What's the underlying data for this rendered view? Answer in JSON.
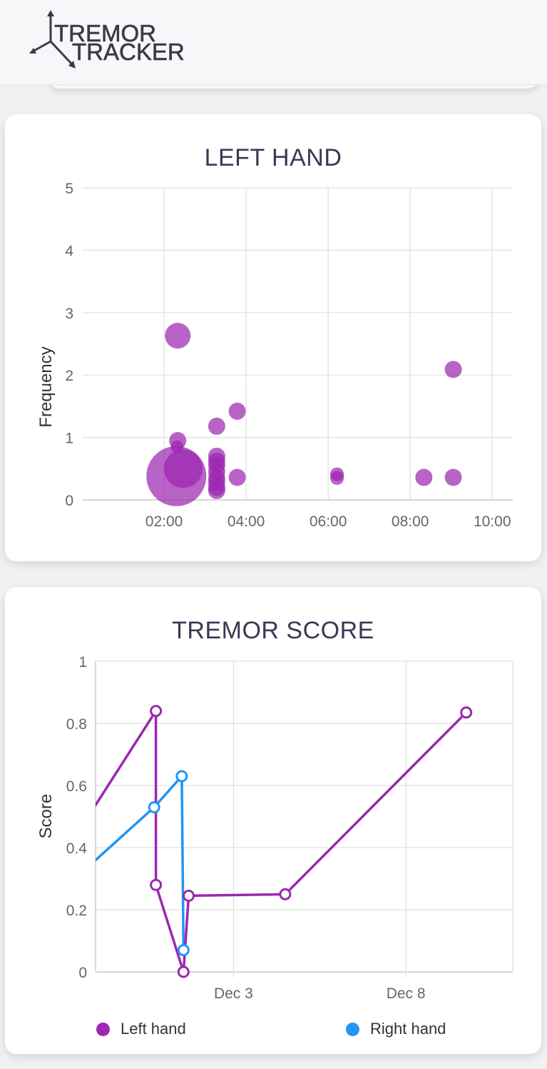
{
  "app": {
    "logo_line1": "TREMOR",
    "logo_line2": "TRACKER"
  },
  "left_hand_card": {
    "title": "LEFT HAND",
    "ylabel": "Frequency"
  },
  "score_card": {
    "title": "TREMOR SCORE",
    "ylabel": "Score",
    "legend": [
      {
        "label": "Left hand",
        "color": "#9c27b0"
      },
      {
        "label": "Right hand",
        "color": "#2196f3"
      }
    ]
  },
  "colors": {
    "bubble": "#9c27b0",
    "left_line": "#9c27b0",
    "right_line": "#2196f3",
    "title": "#3c3755",
    "axis_text": "#666666",
    "grid": "#e0e0e0"
  },
  "chart_data": [
    {
      "type": "scatter",
      "title": "LEFT HAND",
      "xlabel": "",
      "ylabel": "Frequency",
      "x_ticks": [
        "02:00",
        "04:00",
        "06:00",
        "08:00",
        "10:00"
      ],
      "y_ticks": [
        "0",
        "1",
        "2",
        "3",
        "4",
        "5"
      ],
      "xlim_hours": [
        0.0,
        10.5
      ],
      "ylim": [
        0,
        5
      ],
      "grid": true,
      "points": [
        {
          "x": "02:20",
          "y": 2.63,
          "size": 3
        },
        {
          "x": "02:20",
          "y": 0.95,
          "size": 2
        },
        {
          "x": "02:19",
          "y": 0.85,
          "size": 1.5
        },
        {
          "x": "02:18",
          "y": 0.38,
          "size": 7
        },
        {
          "x": "02:28",
          "y": 0.5,
          "size": 4.5
        },
        {
          "x": "03:17",
          "y": 1.18,
          "size": 2
        },
        {
          "x": "03:17",
          "y": 0.7,
          "size": 2
        },
        {
          "x": "03:17",
          "y": 0.62,
          "size": 2
        },
        {
          "x": "03:17",
          "y": 0.55,
          "size": 2
        },
        {
          "x": "03:17",
          "y": 0.45,
          "size": 2
        },
        {
          "x": "03:17",
          "y": 0.35,
          "size": 2
        },
        {
          "x": "03:17",
          "y": 0.28,
          "size": 2
        },
        {
          "x": "03:17",
          "y": 0.2,
          "size": 2
        },
        {
          "x": "03:17",
          "y": 0.15,
          "size": 2
        },
        {
          "x": "03:47",
          "y": 1.42,
          "size": 2
        },
        {
          "x": "03:47",
          "y": 0.36,
          "size": 2
        },
        {
          "x": "06:13",
          "y": 0.41,
          "size": 1.6
        },
        {
          "x": "06:13",
          "y": 0.35,
          "size": 1.6
        },
        {
          "x": "08:20",
          "y": 0.36,
          "size": 2
        },
        {
          "x": "09:03",
          "y": 2.09,
          "size": 2
        },
        {
          "x": "09:03",
          "y": 0.36,
          "size": 2
        }
      ]
    },
    {
      "type": "line",
      "title": "TREMOR SCORE",
      "xlabel": "",
      "ylabel": "Score",
      "x_ticks": [
        "Dec 3",
        "Dec 8"
      ],
      "y_ticks": [
        "0",
        "0.2",
        "0.4",
        "0.6",
        "0.8",
        "1"
      ],
      "x_day_range": [
        -1.0,
        11.1
      ],
      "ylim": [
        0,
        1
      ],
      "grid": true,
      "legend_position": "bottom",
      "series": [
        {
          "name": "Left hand",
          "color": "#9c27b0",
          "points": [
            {
              "x": -1.1,
              "y": 0.52,
              "marker": false
            },
            {
              "x": 0.75,
              "y": 0.84,
              "marker": true
            },
            {
              "x": 0.75,
              "y": 0.28,
              "marker": true
            },
            {
              "x": 1.55,
              "y": 0.0,
              "marker": true
            },
            {
              "x": 1.7,
              "y": 0.245,
              "marker": true
            },
            {
              "x": 4.5,
              "y": 0.25,
              "marker": true
            },
            {
              "x": 9.75,
              "y": 0.835,
              "marker": true
            }
          ]
        },
        {
          "name": "Right hand",
          "color": "#2196f3",
          "points": [
            {
              "x": -1.1,
              "y": 0.35,
              "marker": false
            },
            {
              "x": 0.7,
              "y": 0.53,
              "marker": true
            },
            {
              "x": 1.5,
              "y": 0.63,
              "marker": true
            },
            {
              "x": 1.55,
              "y": 0.07,
              "marker": true
            }
          ]
        }
      ]
    }
  ]
}
